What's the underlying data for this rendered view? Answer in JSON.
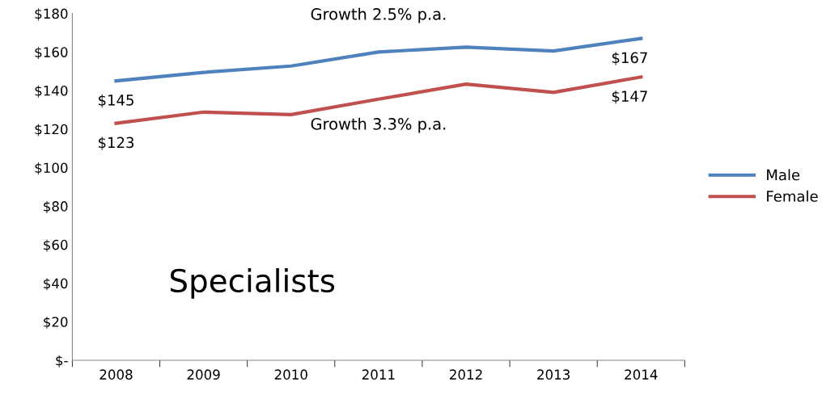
{
  "chart_data": {
    "type": "line",
    "categories": [
      "2008",
      "2009",
      "2010",
      "2011",
      "2012",
      "2013",
      "2014"
    ],
    "series": [
      {
        "name": "Male",
        "color": "#4f81bd",
        "values": [
          145,
          149.4,
          152.7,
          160,
          162.5,
          160.5,
          167
        ],
        "value_labels": [
          "$145",
          null,
          null,
          null,
          null,
          null,
          "$167"
        ]
      },
      {
        "name": "Female",
        "color": "#c0504d",
        "values": [
          123,
          128.8,
          127.5,
          135.5,
          143.3,
          139,
          147
        ],
        "value_labels": [
          "$123",
          null,
          null,
          null,
          null,
          null,
          "$147"
        ]
      }
    ],
    "ylim": [
      0,
      180
    ],
    "yticks": [
      {
        "value": 0,
        "label": "$-"
      },
      {
        "value": 20,
        "label": "$20"
      },
      {
        "value": 40,
        "label": "$40"
      },
      {
        "value": 60,
        "label": "$60"
      },
      {
        "value": 80,
        "label": "$80"
      },
      {
        "value": 100,
        "label": "$100"
      },
      {
        "value": 120,
        "label": "$120"
      },
      {
        "value": 140,
        "label": "$140"
      },
      {
        "value": 160,
        "label": "$160"
      },
      {
        "value": 180,
        "label": "$180"
      }
    ],
    "annotations": [
      "Growth 2.5% p.a.",
      "Growth 3.3% p.a.",
      "Specialists"
    ],
    "legend": "right",
    "grid": false,
    "marker": "none",
    "line_style": "solid"
  }
}
